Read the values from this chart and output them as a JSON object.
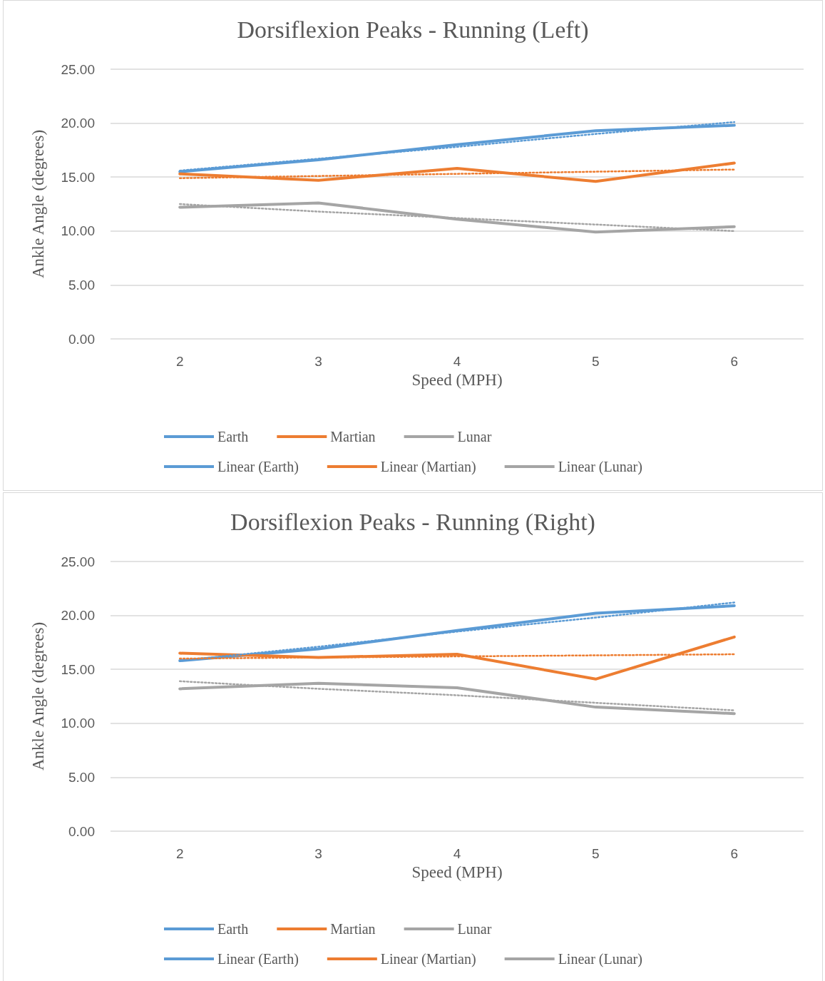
{
  "chart_data": [
    {
      "type": "line",
      "title": "Dorsiflexion Peaks - Running (Left)",
      "xlabel": "Speed (MPH)",
      "ylabel": "Ankle Angle (degrees)",
      "categories": [
        "2",
        "3",
        "4",
        "5",
        "6"
      ],
      "ylim": [
        0,
        25
      ],
      "yticks": [
        {
          "value": 0,
          "label": "0.00"
        },
        {
          "value": 5,
          "label": "5.00"
        },
        {
          "value": 10,
          "label": "10.00"
        },
        {
          "value": 15,
          "label": "15.00"
        },
        {
          "value": 20,
          "label": "20.00"
        },
        {
          "value": 25,
          "label": "25.00"
        }
      ],
      "grid": "y",
      "legend": "bottom",
      "marker": "none",
      "series": [
        {
          "name": "Earth",
          "color": "#5b9bd5",
          "line_style": "solid",
          "values": [
            15.5,
            16.6,
            18.0,
            19.3,
            19.8
          ]
        },
        {
          "name": "Martian",
          "color": "#ed7d31",
          "line_style": "solid",
          "values": [
            15.3,
            14.7,
            15.8,
            14.6,
            16.3
          ]
        },
        {
          "name": "Lunar",
          "color": "#a5a5a5",
          "line_style": "solid",
          "values": [
            12.2,
            12.6,
            11.1,
            9.9,
            10.4
          ]
        },
        {
          "name": "Linear (Earth)",
          "color": "#5b9bd5",
          "line_style": "dotted",
          "values": [
            15.6,
            16.7,
            17.8,
            19.0,
            20.1
          ]
        },
        {
          "name": "Linear (Martian)",
          "color": "#ed7d31",
          "line_style": "dotted",
          "values": [
            14.9,
            15.1,
            15.3,
            15.5,
            15.7
          ]
        },
        {
          "name": "Linear (Lunar)",
          "color": "#a5a5a5",
          "line_style": "dotted",
          "values": [
            12.5,
            11.8,
            11.2,
            10.6,
            10.0
          ]
        }
      ]
    },
    {
      "type": "line",
      "title": "Dorsiflexion Peaks - Running (Right)",
      "xlabel": "Speed (MPH)",
      "ylabel": "Ankle Angle (degrees)",
      "categories": [
        "2",
        "3",
        "4",
        "5",
        "6"
      ],
      "ylim": [
        0,
        25
      ],
      "yticks": [
        {
          "value": 0,
          "label": "0.00"
        },
        {
          "value": 5,
          "label": "5.00"
        },
        {
          "value": 10,
          "label": "10.00"
        },
        {
          "value": 15,
          "label": "15.00"
        },
        {
          "value": 20,
          "label": "20.00"
        },
        {
          "value": 25,
          "label": "25.00"
        }
      ],
      "grid": "y",
      "legend": "bottom",
      "marker": "none",
      "series": [
        {
          "name": "Earth",
          "color": "#5b9bd5",
          "line_style": "solid",
          "values": [
            15.8,
            16.9,
            18.6,
            20.2,
            20.9
          ]
        },
        {
          "name": "Martian",
          "color": "#ed7d31",
          "line_style": "solid",
          "values": [
            16.5,
            16.1,
            16.4,
            14.1,
            18.0
          ]
        },
        {
          "name": "Lunar",
          "color": "#a5a5a5",
          "line_style": "solid",
          "values": [
            13.2,
            13.7,
            13.3,
            11.5,
            10.9
          ]
        },
        {
          "name": "Linear (Earth)",
          "color": "#5b9bd5",
          "line_style": "dotted",
          "values": [
            15.8,
            17.1,
            18.5,
            19.8,
            21.2
          ]
        },
        {
          "name": "Linear (Martian)",
          "color": "#ed7d31",
          "line_style": "dotted",
          "values": [
            16.0,
            16.1,
            16.2,
            16.3,
            16.4
          ]
        },
        {
          "name": "Linear (Lunar)",
          "color": "#a5a5a5",
          "line_style": "dotted",
          "values": [
            13.9,
            13.2,
            12.6,
            11.9,
            11.2
          ]
        }
      ]
    }
  ]
}
